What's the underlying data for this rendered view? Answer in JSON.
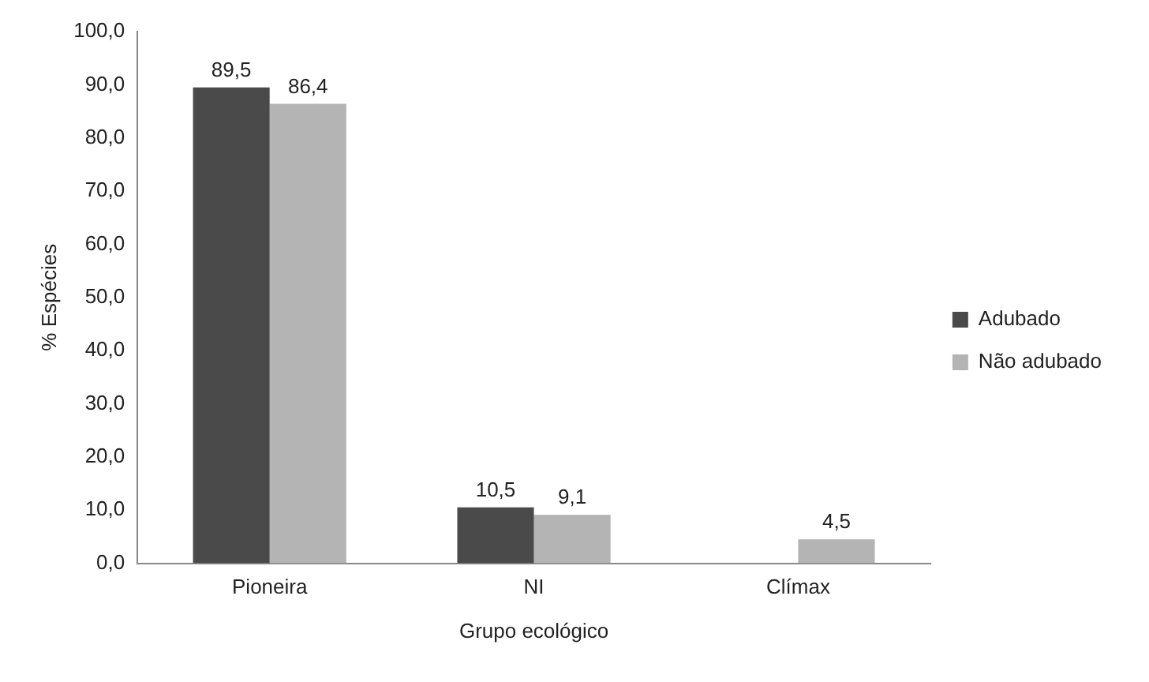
{
  "chart_data": {
    "type": "bar",
    "xlabel": "Grupo ecológico",
    "ylabel": "% Espécies",
    "categories": [
      "Pioneira",
      "NI",
      "Clímax"
    ],
    "series": [
      {
        "name": "Adubado",
        "color": "#4a4a4a",
        "values": [
          89.5,
          10.5,
          null
        ],
        "value_labels": [
          "89,5",
          "10,5",
          null
        ]
      },
      {
        "name": "Não adubado",
        "color": "#b4b4b4",
        "values": [
          86.4,
          9.1,
          4.5
        ],
        "value_labels": [
          "86,4",
          "9,1",
          "4,5"
        ]
      }
    ],
    "ylim": [
      0,
      100
    ],
    "yticks": [
      {
        "value": 0,
        "label": "0,0"
      },
      {
        "value": 10,
        "label": "10,0"
      },
      {
        "value": 20,
        "label": "20,0"
      },
      {
        "value": 30,
        "label": "30,0"
      },
      {
        "value": 40,
        "label": "40,0"
      },
      {
        "value": 50,
        "label": "50,0"
      },
      {
        "value": 60,
        "label": "60,0"
      },
      {
        "value": 70,
        "label": "70,0"
      },
      {
        "value": 80,
        "label": "80,0"
      },
      {
        "value": 90,
        "label": "90,0"
      },
      {
        "value": 100,
        "label": "100,0"
      }
    ],
    "grid": false,
    "legend": "right"
  }
}
